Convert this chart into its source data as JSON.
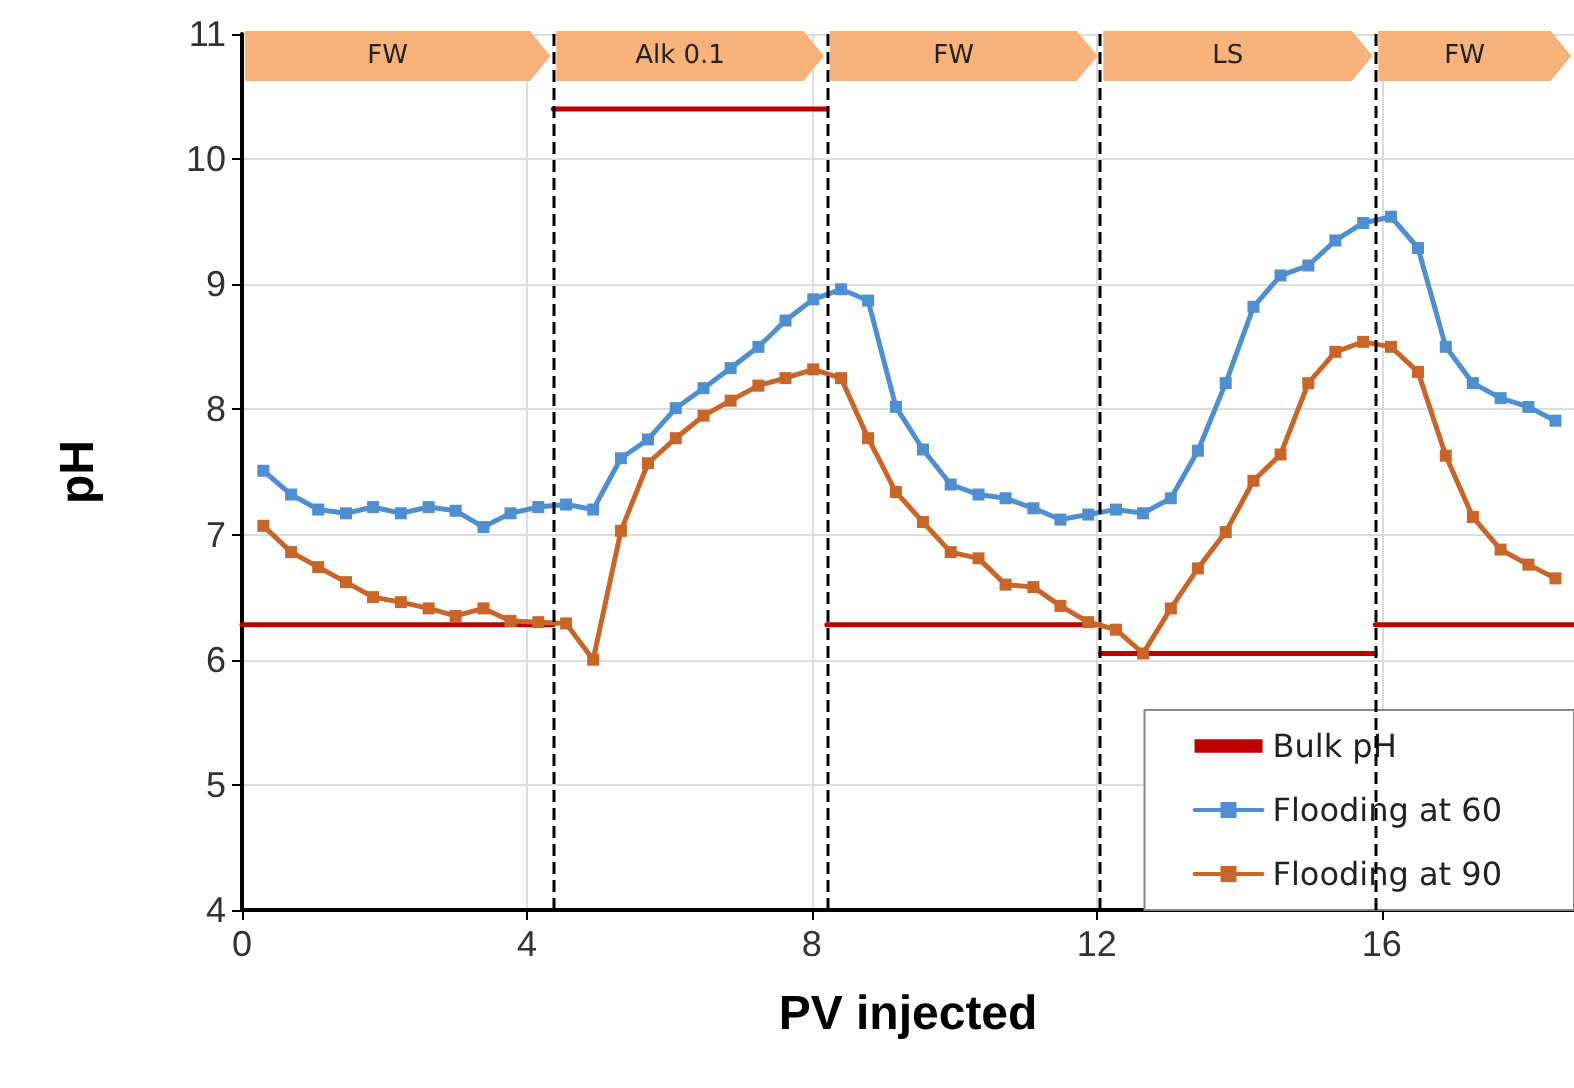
{
  "chart_data": {
    "type": "line",
    "xlabel": "PV injected",
    "ylabel": "pH",
    "x": [
      0.3,
      0.69,
      1.07,
      1.46,
      1.84,
      2.23,
      2.62,
      3.0,
      3.39,
      3.77,
      4.16,
      4.55,
      4.93,
      5.32,
      5.7,
      6.09,
      6.48,
      6.86,
      7.25,
      7.63,
      8.02,
      8.41,
      8.79,
      9.18,
      9.56,
      9.95,
      10.34,
      10.72,
      11.11,
      11.49,
      11.88,
      12.27,
      12.65,
      13.04,
      13.42,
      13.81,
      14.2,
      14.58,
      14.97,
      15.35,
      15.74,
      16.13,
      16.51,
      16.9,
      17.28,
      17.67,
      18.06,
      18.44
    ],
    "series": [
      {
        "name": "Bulk pH",
        "color": "#c00000",
        "marker": "none",
        "x": [
          0,
          4.37,
          4.37,
          8.21,
          8.21,
          12.05,
          12.05,
          15.91,
          15.91,
          18.7
        ],
        "values": [
          6.28,
          6.28,
          10.4,
          10.4,
          6.28,
          6.28,
          6.05,
          6.05,
          6.28,
          6.28
        ]
      },
      {
        "name": "Flooding at 60",
        "color": "#4f8fcf",
        "values": [
          7.51,
          7.32,
          7.2,
          7.17,
          7.22,
          7.17,
          7.22,
          7.19,
          7.06,
          7.17,
          7.22,
          7.24,
          7.2,
          7.61,
          7.76,
          8.01,
          8.17,
          8.33,
          8.5,
          8.71,
          8.88,
          8.96,
          8.87,
          8.02,
          7.68,
          7.4,
          7.32,
          7.29,
          7.21,
          7.12,
          7.16,
          7.2,
          7.17,
          7.29,
          7.67,
          8.21,
          8.82,
          9.07,
          9.15,
          9.35,
          9.49,
          9.54,
          9.29,
          8.5,
          8.21,
          8.09,
          8.02,
          7.91
        ]
      },
      {
        "name": "Flooding at 90",
        "color": "#c8662a",
        "values": [
          7.07,
          6.86,
          6.74,
          6.62,
          6.5,
          6.46,
          6.41,
          6.35,
          6.41,
          6.31,
          6.3,
          6.29,
          6.0,
          7.03,
          7.57,
          7.77,
          7.95,
          8.07,
          8.19,
          8.25,
          8.32,
          8.25,
          7.77,
          7.34,
          7.1,
          6.86,
          6.81,
          6.6,
          6.58,
          6.43,
          6.3,
          6.24,
          6.05,
          6.41,
          6.73,
          7.02,
          7.43,
          7.64,
          8.21,
          8.46,
          8.54,
          8.5,
          8.3,
          7.63,
          7.14,
          6.88,
          6.76,
          6.65
        ]
      }
    ],
    "xlim": [
      0,
      18.7
    ],
    "xticks": [
      0,
      4,
      8,
      12,
      16
    ],
    "ylim": [
      4,
      11
    ],
    "yticks": [
      4,
      5,
      6,
      7,
      8,
      9,
      10,
      11
    ],
    "ref_lines": [
      {
        "axis": "x",
        "value": 4.37,
        "color": "#000000",
        "line_style": "dashed"
      },
      {
        "axis": "x",
        "value": 8.21,
        "color": "#000000",
        "line_style": "dashed"
      },
      {
        "axis": "x",
        "value": 12.05,
        "color": "#000000",
        "line_style": "dashed"
      },
      {
        "axis": "x",
        "value": 15.91,
        "color": "#000000",
        "line_style": "dashed"
      }
    ],
    "bands": [
      {
        "axis": "x",
        "from": 0,
        "to": 4.37,
        "label": "FW",
        "color": "#f8b27a"
      },
      {
        "axis": "x",
        "from": 4.37,
        "to": 8.21,
        "label": "Alk 0.1",
        "color": "#f8b27a"
      },
      {
        "axis": "x",
        "from": 8.21,
        "to": 12.05,
        "label": "FW",
        "color": "#f8b27a"
      },
      {
        "axis": "x",
        "from": 12.05,
        "to": 15.91,
        "label": "LS",
        "color": "#f8b27a"
      },
      {
        "axis": "x",
        "from": 15.91,
        "to": 18.7,
        "label": "FW",
        "color": "#f8b27a"
      }
    ],
    "marker": "square",
    "line_style": "solid",
    "grid": true,
    "legend": "bottom right"
  }
}
